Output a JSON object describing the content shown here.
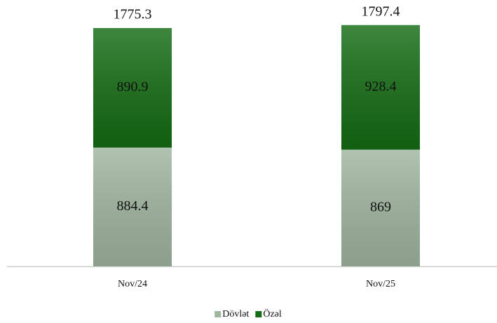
{
  "chart_data": {
    "type": "stacked_bar",
    "categories": [
      "Nov/24",
      "Nov/25"
    ],
    "series": [
      {
        "name": "Dövlət",
        "color": "#9fb59f",
        "values": [
          884.4,
          869
        ]
      },
      {
        "name": "Özəl",
        "color": "#146c14",
        "values": [
          890.9,
          928.4
        ]
      }
    ],
    "totals": [
      1775.3,
      1797.4
    ],
    "legend": "bottom"
  }
}
